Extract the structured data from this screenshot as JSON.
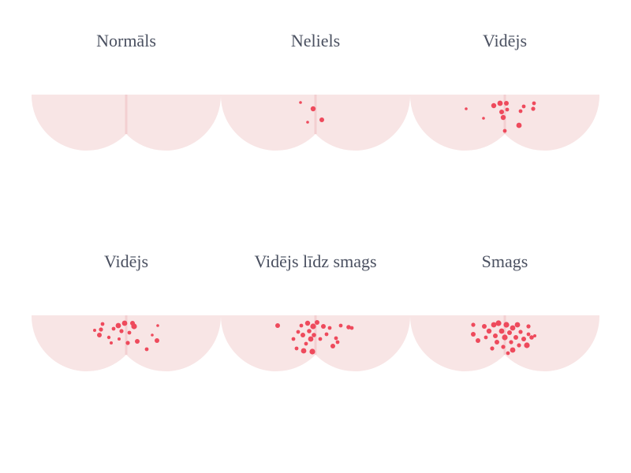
{
  "colors": {
    "skin": "#f8e5e5",
    "cleft": "#f3cfd1",
    "spot": "#ee4a5c",
    "title": "#4a5060",
    "background": "#ffffff"
  },
  "panels": [
    {
      "title": "Normāls"
    },
    {
      "title": "Neliels"
    },
    {
      "title": "Vidējs"
    },
    {
      "title": "Vidējs"
    },
    {
      "title": "Vidējs līdz smags"
    },
    {
      "title": "Smags"
    }
  ]
}
